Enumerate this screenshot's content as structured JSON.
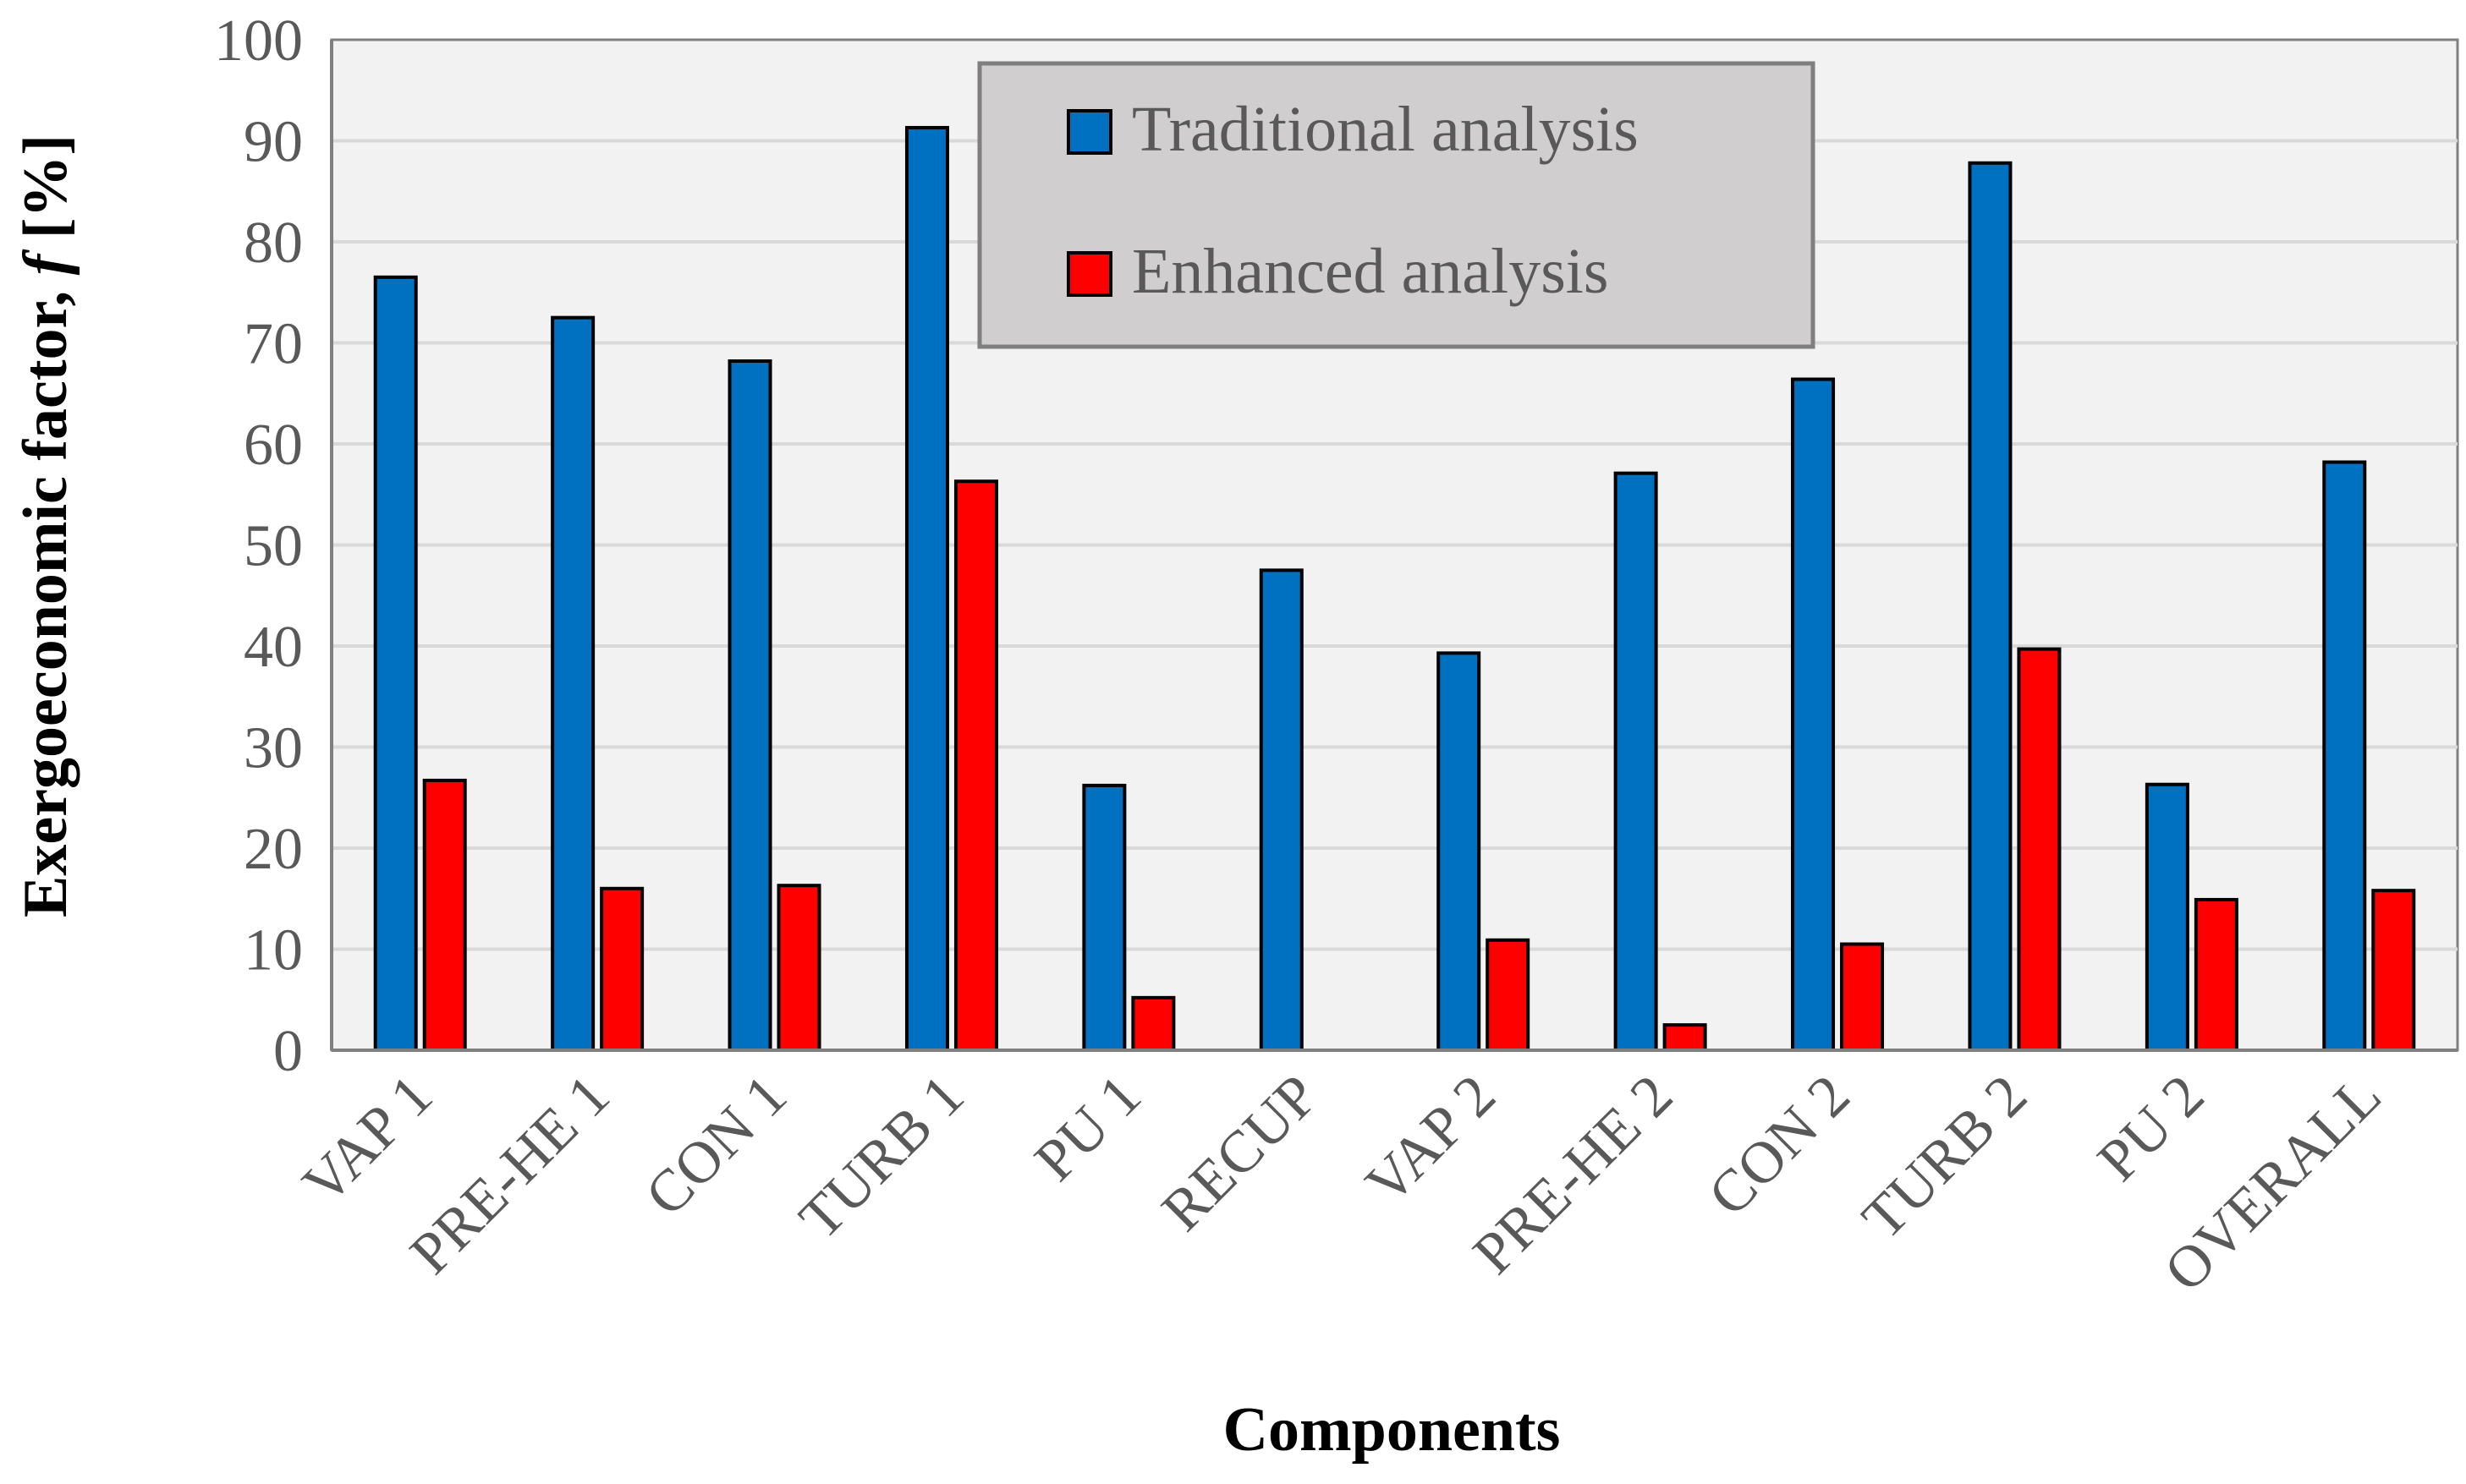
{
  "chart_data": {
    "type": "bar",
    "title": "",
    "xlabel": "Components",
    "ylabel_prefix": "Exergoeconomic factor, ",
    "ylabel_symbol": "f",
    "ylabel_suffix": " [%]",
    "ylim": [
      0,
      100
    ],
    "ytick_step": 10,
    "grid": true,
    "legend_position": "top-center",
    "categories": [
      "VAP 1",
      "PRE-HE 1",
      "CON 1",
      "TURB 1",
      "PU 1",
      "RECUP",
      "VAP 2",
      "PRE-HE 2",
      "CON 2",
      "TURB 2",
      "PU 2",
      "OVERALL"
    ],
    "series": [
      {
        "name": "Traditional analysis",
        "color": "#0070C0",
        "values": [
          76.5,
          72.5,
          68.2,
          91.3,
          26.2,
          47.5,
          39.3,
          57.1,
          66.4,
          87.8,
          26.3,
          58.2
        ]
      },
      {
        "name": "Enhanced analysis",
        "color": "#FF0000",
        "values": [
          26.7,
          16.0,
          16.3,
          56.3,
          5.2,
          0,
          10.9,
          2.5,
          10.5,
          39.7,
          14.9,
          15.8
        ]
      }
    ],
    "colors": {
      "plot_background": "#F2F2F2",
      "gridline": "#D9D9D9",
      "legend_background": "#D0CECE",
      "legend_border": "#7F7F7F",
      "axis": "#808080"
    }
  }
}
